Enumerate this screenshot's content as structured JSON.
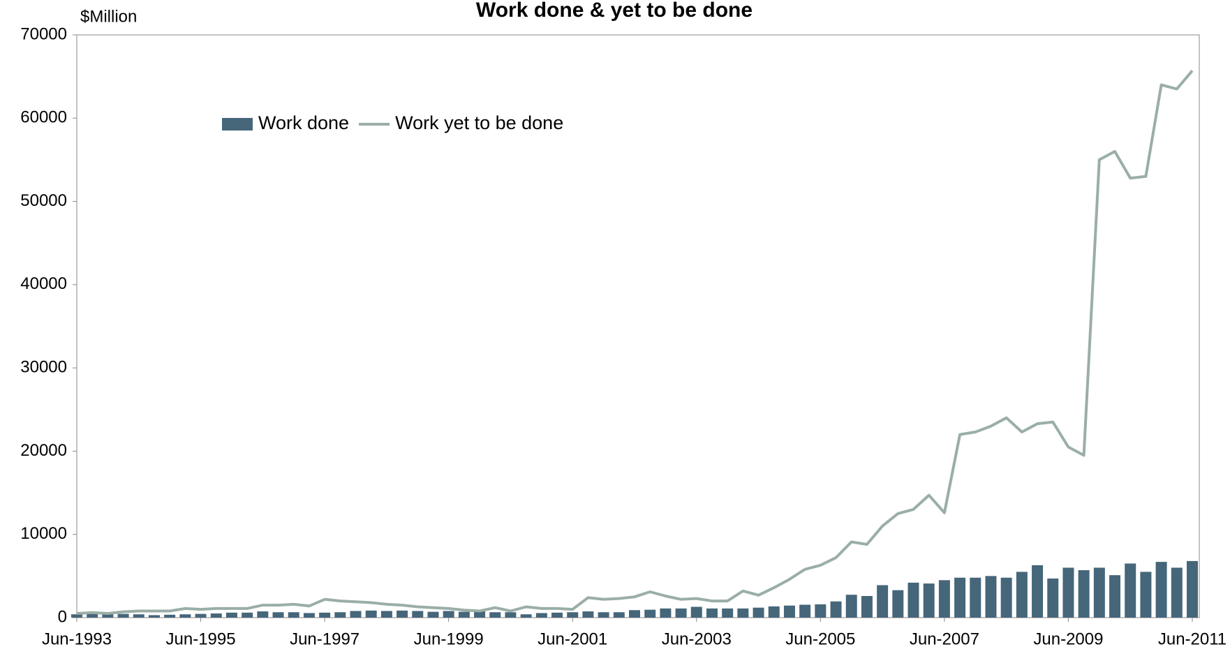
{
  "chart_data": {
    "type": "bar",
    "title": "Work done & yet to be done",
    "y_label": "$Million",
    "categories": [
      "Jun-1993",
      null,
      null,
      null,
      null,
      null,
      null,
      null,
      "Jun-1995",
      null,
      null,
      null,
      null,
      null,
      null,
      null,
      "Jun-1997",
      null,
      null,
      null,
      null,
      null,
      null,
      null,
      "Jun-1999",
      null,
      null,
      null,
      null,
      null,
      null,
      null,
      "Jun-2001",
      null,
      null,
      null,
      null,
      null,
      null,
      null,
      "Jun-2003",
      null,
      null,
      null,
      null,
      null,
      null,
      null,
      "Jun-2005",
      null,
      null,
      null,
      null,
      null,
      null,
      null,
      "Jun-2007",
      null,
      null,
      null,
      null,
      null,
      null,
      null,
      "Jun-2009",
      null,
      null,
      null,
      null,
      null,
      null,
      null,
      "Jun-2011"
    ],
    "series": [
      {
        "name": "Work done",
        "type": "bar",
        "color": "#46667a",
        "values": [
          400,
          450,
          400,
          450,
          400,
          300,
          350,
          400,
          450,
          500,
          600,
          600,
          750,
          650,
          650,
          550,
          600,
          650,
          800,
          850,
          800,
          850,
          800,
          700,
          800,
          700,
          750,
          650,
          650,
          400,
          550,
          600,
          650,
          750,
          650,
          650,
          900,
          950,
          1100,
          1100,
          1300,
          1100,
          1100,
          1100,
          1200,
          1350,
          1450,
          1550,
          1600,
          1950,
          2750,
          2600,
          3900,
          3300,
          4200,
          4100,
          4500,
          4800,
          4800,
          5000,
          4800,
          5500,
          6300,
          4700,
          6000,
          5700,
          6000,
          5100,
          6500,
          5500,
          6700,
          6000,
          6800
        ]
      },
      {
        "name": "Work yet to be done",
        "type": "line",
        "color": "#9aaea7",
        "values": [
          500,
          600,
          500,
          700,
          800,
          800,
          800,
          1100,
          1000,
          1100,
          1100,
          1100,
          1500,
          1500,
          1600,
          1400,
          2200,
          2000,
          1900,
          1800,
          1600,
          1500,
          1300,
          1200,
          1100,
          900,
          800,
          1200,
          800,
          1300,
          1100,
          1100,
          1000,
          2400,
          2200,
          2300,
          2500,
          3100,
          2600,
          2200,
          2300,
          2000,
          2000,
          3200,
          2700,
          3600,
          4600,
          5800,
          6300,
          7200,
          9100,
          8800,
          11000,
          12500,
          13000,
          14700,
          12600,
          22000,
          22300,
          23000,
          24000,
          22300,
          23300,
          23500,
          20500,
          19500,
          55000,
          56000,
          52800,
          53000,
          64000,
          63500,
          65700
        ]
      }
    ],
    "ylim": [
      0,
      70000
    ],
    "yticks": [
      0,
      10000,
      20000,
      30000,
      40000,
      50000,
      60000,
      70000
    ],
    "grid": false,
    "legend": "top-left"
  }
}
